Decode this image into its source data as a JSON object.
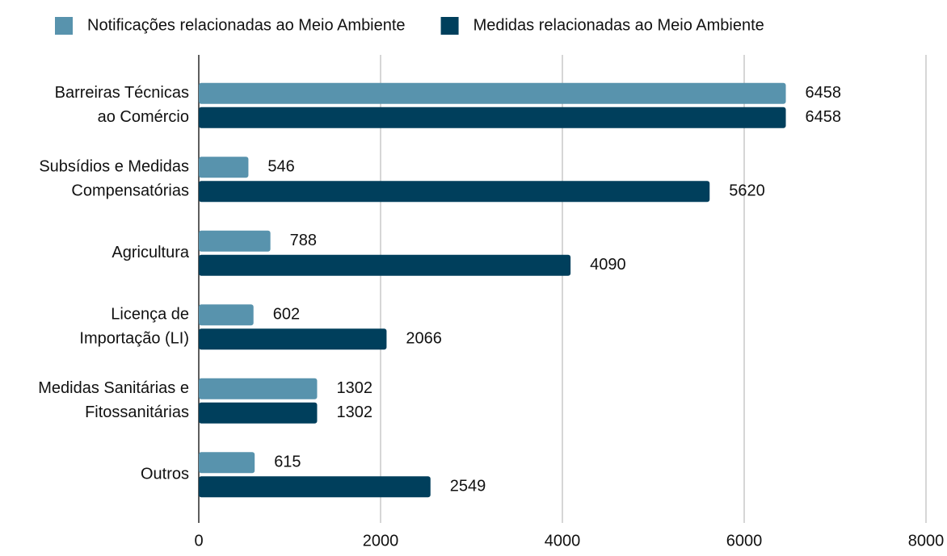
{
  "chart_data": {
    "type": "bar",
    "orientation": "horizontal",
    "categories": [
      [
        "Barreiras Técnicas",
        "ao Comércio"
      ],
      [
        "Subsídios e Medidas",
        "Compensatórias"
      ],
      [
        "Agricultura"
      ],
      [
        "Licença de",
        "Importação (LI)"
      ],
      [
        "Medidas Sanitárias e",
        "Fitossanitárias"
      ],
      [
        "Outros"
      ]
    ],
    "series": [
      {
        "name": "Notificações relacionadas ao Meio Ambiente",
        "color": "#5893ad",
        "values": [
          6458,
          546,
          788,
          602,
          1302,
          615
        ]
      },
      {
        "name": "Medidas relacionadas ao Meio Ambiente",
        "color": "#003f5c",
        "values": [
          6458,
          5620,
          4090,
          2066,
          1302,
          2549
        ]
      }
    ],
    "xlim": [
      0,
      8000
    ],
    "xticks": [
      0,
      2000,
      4000,
      6000,
      8000
    ],
    "grid": true,
    "legend": "top"
  }
}
